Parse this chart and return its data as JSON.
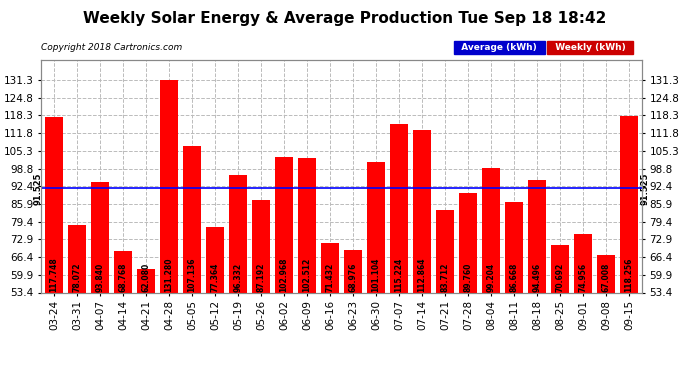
{
  "title": "Weekly Solar Energy & Average Production Tue Sep 18 18:42",
  "copyright": "Copyright 2018 Cartronics.com",
  "categories": [
    "03-24",
    "03-31",
    "04-07",
    "04-14",
    "04-21",
    "04-28",
    "05-05",
    "05-12",
    "05-19",
    "05-26",
    "06-02",
    "06-09",
    "06-16",
    "06-23",
    "06-30",
    "07-07",
    "07-14",
    "07-21",
    "07-28",
    "08-04",
    "08-11",
    "08-18",
    "08-25",
    "09-01",
    "09-08",
    "09-15"
  ],
  "values": [
    117.748,
    78.072,
    93.84,
    68.768,
    62.08,
    131.28,
    107.136,
    77.364,
    96.332,
    87.192,
    102.968,
    102.512,
    71.432,
    68.976,
    101.104,
    115.224,
    112.864,
    83.712,
    89.76,
    99.204,
    86.668,
    94.496,
    70.692,
    74.956,
    67.008,
    118.256
  ],
  "average": 91.525,
  "bar_color": "#ff0000",
  "average_line_color": "#0000ff",
  "background_color": "#ffffff",
  "plot_bg_color": "#ffffff",
  "grid_color": "#bbbbbb",
  "ylim_min": 53.4,
  "ylim_max": 138.6,
  "yticks": [
    53.4,
    59.9,
    66.4,
    72.9,
    79.4,
    85.9,
    92.4,
    98.8,
    105.3,
    111.8,
    118.3,
    124.8,
    131.3
  ],
  "legend_avg_color": "#0000cc",
  "legend_weekly_color": "#cc0000",
  "legend_avg_label": "Average (kWh)",
  "legend_weekly_label": "Weekly (kWh)",
  "avg_label": "91.525",
  "title_fontsize": 11,
  "copyright_fontsize": 6.5,
  "bar_label_fontsize": 5.5,
  "tick_fontsize": 7.5,
  "avg_fontsize": 6.0
}
